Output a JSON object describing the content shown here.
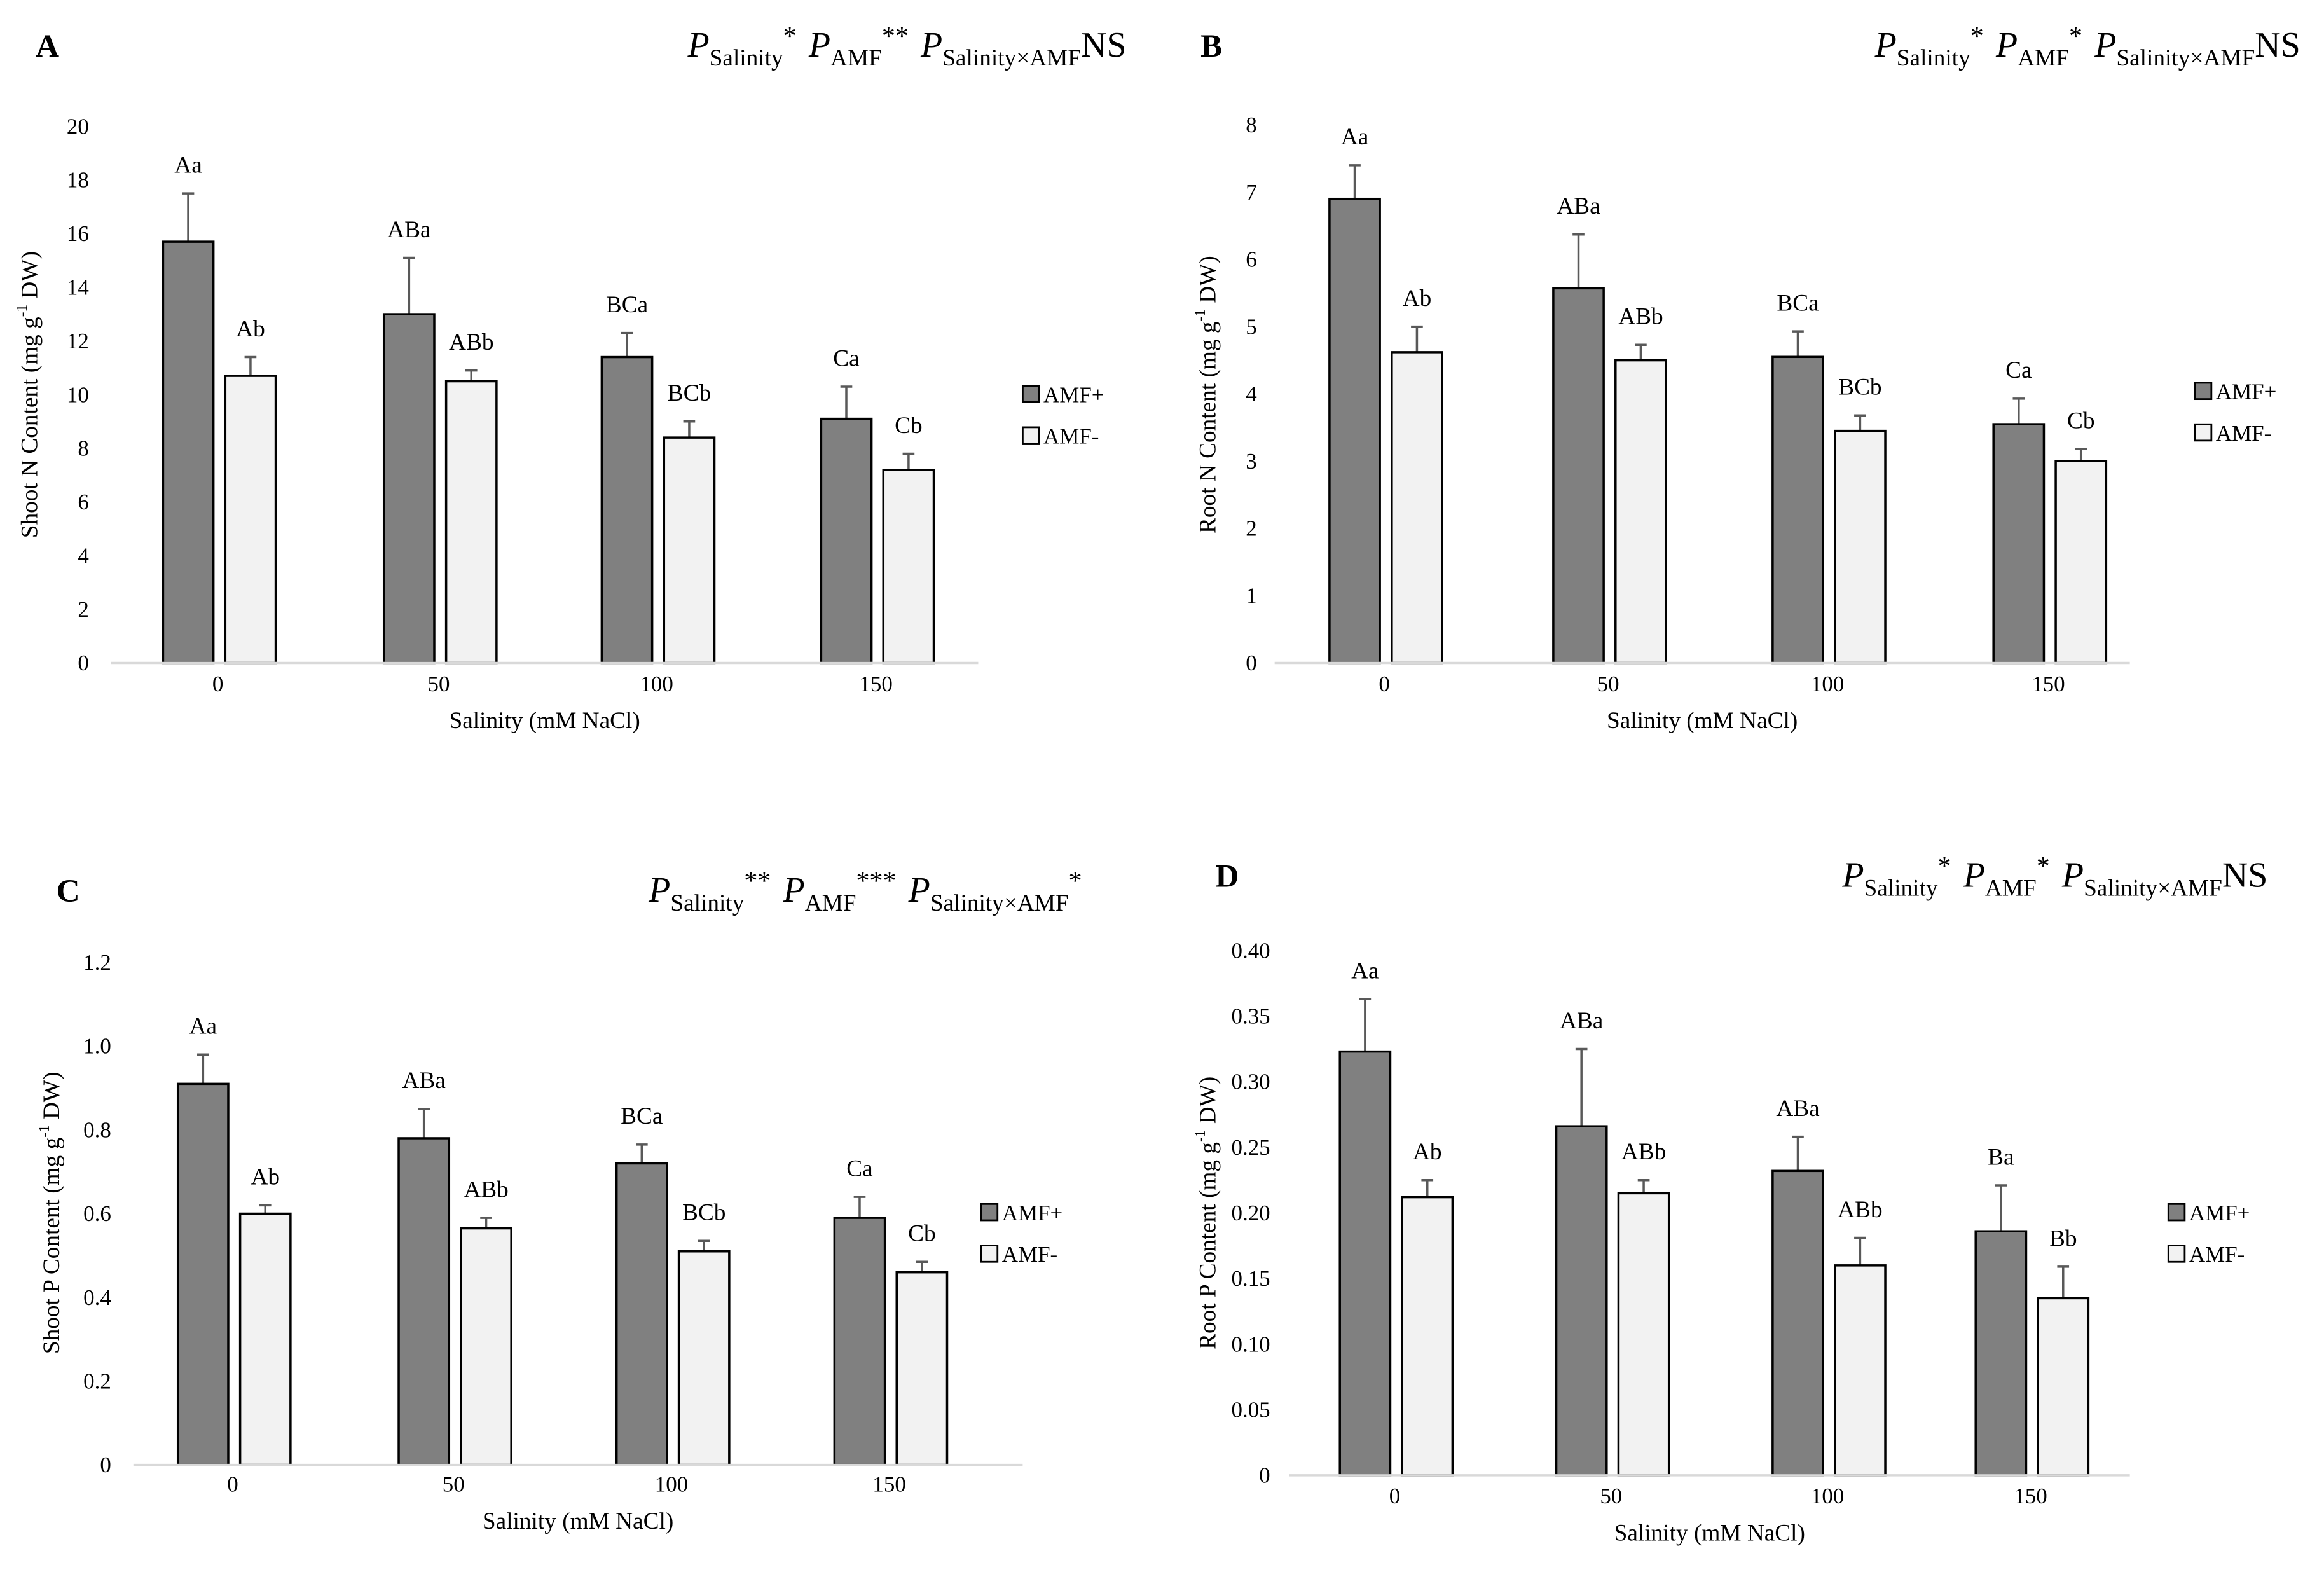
{
  "colors": {
    "amf_plus": "#808080",
    "amf_minus": "#f2f2f2",
    "error": "#595959",
    "axis": "#d9d9d9"
  },
  "chart_data": [
    {
      "type": "bar",
      "panel": "A",
      "annotation": [
        {
          "p": "P",
          "sub": "Salinity",
          "sig": "*"
        },
        {
          "p": "P",
          "sub": "AMF",
          "sig": "**"
        },
        {
          "p": "P",
          "sub": "Salinity×AMF",
          "sig": "NS"
        }
      ],
      "xlabel": "Salinity (mM NaCl)",
      "ylabel": "Shoot N Content (mg g-1 DW)",
      "ylabel_parts": [
        "Shoot N Content (mg g",
        "-1",
        " DW)"
      ],
      "categories": [
        "0",
        "50",
        "100",
        "150"
      ],
      "ylim": [
        0,
        20
      ],
      "yticks": [
        0,
        2,
        4,
        6,
        8,
        10,
        12,
        14,
        16,
        18,
        20
      ],
      "ytick_labels": [
        "0",
        "2",
        "4",
        "6",
        "8",
        "10",
        "12",
        "14",
        "16",
        "18",
        "20"
      ],
      "legend": "right",
      "series": [
        {
          "name": "AMF+",
          "values": [
            15.7,
            13.0,
            11.4,
            9.1
          ],
          "errors": [
            1.8,
            2.1,
            0.9,
            1.2
          ],
          "labels": [
            "Aa",
            "ABa",
            "BCa",
            "Ca"
          ]
        },
        {
          "name": "AMF-",
          "values": [
            10.7,
            10.5,
            8.4,
            7.2
          ],
          "errors": [
            0.7,
            0.4,
            0.6,
            0.6
          ],
          "labels": [
            "Ab",
            "ABb",
            "BCb",
            "Cb"
          ]
        }
      ]
    },
    {
      "type": "bar",
      "panel": "B",
      "annotation": [
        {
          "p": "P",
          "sub": "Salinity",
          "sig": "*"
        },
        {
          "p": "P",
          "sub": "AMF",
          "sig": "*"
        },
        {
          "p": "P",
          "sub": "Salinity×AMF",
          "sig": "NS"
        }
      ],
      "xlabel": "Salinity (mM NaCl)",
      "ylabel": "Root N Content (mg g-1 DW)",
      "ylabel_parts": [
        "Root N Content (mg g",
        "-1",
        " DW)"
      ],
      "categories": [
        "0",
        "50",
        "100",
        "150"
      ],
      "ylim": [
        0,
        8
      ],
      "yticks": [
        0,
        1,
        2,
        3,
        4,
        5,
        6,
        7,
        8
      ],
      "ytick_labels": [
        "0",
        "1",
        "2",
        "3",
        "4",
        "5",
        "6",
        "7",
        "8"
      ],
      "legend": "right",
      "series": [
        {
          "name": "AMF+",
          "values": [
            6.9,
            5.57,
            4.55,
            3.55
          ],
          "errors": [
            0.5,
            0.8,
            0.38,
            0.38
          ],
          "labels": [
            "Aa",
            "ABa",
            "BCa",
            "Ca"
          ]
        },
        {
          "name": "AMF-",
          "values": [
            4.62,
            4.5,
            3.45,
            3.0
          ],
          "errors": [
            0.38,
            0.23,
            0.23,
            0.18
          ],
          "labels": [
            "Ab",
            "ABb",
            "BCb",
            "Cb"
          ]
        }
      ]
    },
    {
      "type": "bar",
      "panel": "C",
      "annotation": [
        {
          "p": "P",
          "sub": "Salinity",
          "sig": "**"
        },
        {
          "p": "P",
          "sub": "AMF",
          "sig": "***"
        },
        {
          "p": "P",
          "sub": "Salinity×AMF",
          "sig": "*"
        }
      ],
      "xlabel": "Salinity (mM NaCl)",
      "ylabel": "Shoot P Content (mg g-1 DW)",
      "ylabel_parts": [
        "Shoot P Content (mg g",
        "-1",
        " DW)"
      ],
      "categories": [
        "0",
        "50",
        "100",
        "150"
      ],
      "ylim": [
        0,
        1.2
      ],
      "yticks": [
        0,
        0.2,
        0.4,
        0.6,
        0.8,
        1.0,
        1.2
      ],
      "ytick_labels": [
        "0",
        "0.2",
        "0.4",
        "0.6",
        "0.8",
        "1.0",
        "1.2"
      ],
      "legend": "right",
      "series": [
        {
          "name": "AMF+",
          "values": [
            0.91,
            0.78,
            0.72,
            0.59
          ],
          "errors": [
            0.07,
            0.07,
            0.045,
            0.05
          ],
          "labels": [
            "Aa",
            "ABa",
            "BCa",
            "Ca"
          ]
        },
        {
          "name": "AMF-",
          "values": [
            0.6,
            0.565,
            0.51,
            0.46
          ],
          "errors": [
            0.02,
            0.025,
            0.025,
            0.025
          ],
          "labels": [
            "Ab",
            "ABb",
            "BCb",
            "Cb"
          ]
        }
      ]
    },
    {
      "type": "bar",
      "panel": "D",
      "annotation": [
        {
          "p": "P",
          "sub": "Salinity",
          "sig": "*"
        },
        {
          "p": "P",
          "sub": "AMF",
          "sig": "*"
        },
        {
          "p": "P",
          "sub": "Salinity×AMF",
          "sig": "NS"
        }
      ],
      "xlabel": "Salinity (mM NaCl)",
      "ylabel": "Root P Content (mg g-1 DW)",
      "ylabel_parts": [
        "Root P Content (mg g",
        "-1",
        " DW)"
      ],
      "categories": [
        "0",
        "50",
        "100",
        "150"
      ],
      "ylim": [
        0,
        0.4
      ],
      "yticks": [
        0,
        0.05,
        0.1,
        0.15,
        0.2,
        0.25,
        0.3,
        0.35,
        0.4
      ],
      "ytick_labels": [
        "0",
        "0.05",
        "0.10",
        "0.15",
        "0.20",
        "0.25",
        "0.30",
        "0.35",
        "0.40"
      ],
      "legend": "right",
      "series": [
        {
          "name": "AMF+",
          "values": [
            0.323,
            0.266,
            0.232,
            0.186
          ],
          "errors": [
            0.04,
            0.059,
            0.026,
            0.035
          ],
          "labels": [
            "Aa",
            "ABa",
            "ABa",
            "Ba"
          ]
        },
        {
          "name": "AMF-",
          "values": [
            0.212,
            0.215,
            0.16,
            0.135
          ],
          "errors": [
            0.013,
            0.01,
            0.021,
            0.024
          ],
          "labels": [
            "Ab",
            "ABb",
            "ABb",
            "Bb"
          ]
        }
      ]
    }
  ]
}
